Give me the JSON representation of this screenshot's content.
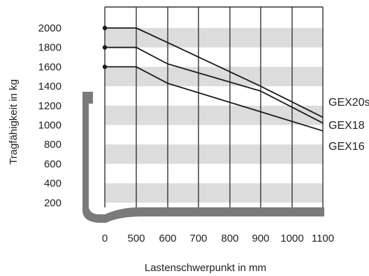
{
  "chart_data": {
    "type": "line",
    "xlabel": "Lastenschwerpunkt in mm",
    "ylabel": "Tragfähigkeit in kg",
    "x_ticks": [
      0,
      500,
      600,
      700,
      800,
      900,
      1000,
      1100
    ],
    "y_ticks": [
      200,
      400,
      600,
      800,
      1000,
      1200,
      1400,
      1600,
      1800,
      2000
    ],
    "grid": true,
    "legend": "right",
    "colors": {
      "band": "#dcdcdc",
      "line": "#1a1a1a",
      "fork": "#7a7a7a"
    },
    "series": [
      {
        "name": "GEX20s",
        "x": [
          0,
          500,
          600,
          900,
          1100
        ],
        "y": [
          2000,
          2000,
          1850,
          1400,
          1080
        ]
      },
      {
        "name": "GEX18",
        "x": [
          0,
          500,
          600,
          900,
          1100
        ],
        "y": [
          1800,
          1800,
          1630,
          1350,
          1020
        ]
      },
      {
        "name": "GEX16",
        "x": [
          0,
          500,
          600,
          1100
        ],
        "y": [
          1600,
          1600,
          1430,
          940
        ]
      }
    ]
  }
}
